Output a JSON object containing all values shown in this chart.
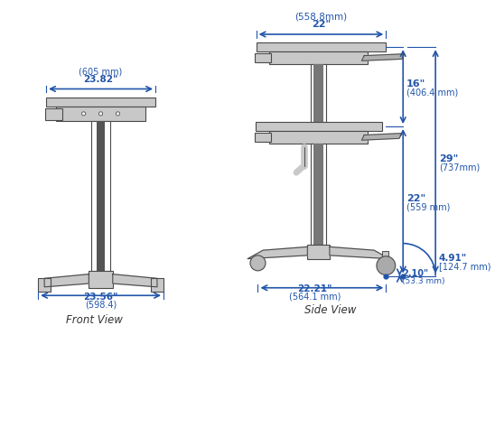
{
  "bg_color": "#ffffff",
  "line_color": "#4a4a4a",
  "dim_color": "#2255aa",
  "gray_fill": "#c8c8c8",
  "dark_gray": "#888888",
  "light_gray": "#b0b0b0",
  "title_color": "#333333",
  "front_view_label": "Front View",
  "side_view_label": "Side View",
  "dims": {
    "top_width_label": "22\"",
    "top_width_mm": "(558.8mm)",
    "worksurface_width_label": "23.82\"",
    "worksurface_width_mm": "(605 mm)",
    "base_width_label": "23.56\"",
    "base_width_mm": "(598.4)",
    "height16_label": "16\"",
    "height16_mm": "(406.4 mm)",
    "height22_label": "22\"",
    "height22_mm": "(559 mm)",
    "height29_label": "29\"",
    "height29_mm": "(737mm)",
    "side_base_label": "22.21\"",
    "side_base_mm": "(564.1 mm)",
    "caster_h_label": "2.10\"",
    "caster_h_mm": "(53.3 mm)",
    "caster_arc_label": "4.91\"",
    "caster_arc_mm": "[124.7 mm)"
  }
}
